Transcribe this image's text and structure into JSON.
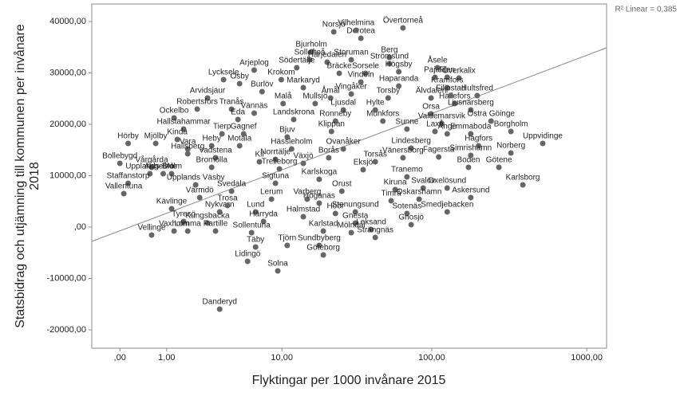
{
  "chart_data": {
    "type": "scatter",
    "x_label": "Flyktingar per 1000 invånare 2015",
    "y_label": [
      "Statsbidrag och utjämning till kommunen per invånare",
      "2018"
    ],
    "r2_label": "R² Linear = 0,385",
    "xscale": "log1p",
    "xlim": [
      -0.34,
      1342
    ],
    "ylim": [
      -23570,
      43410
    ],
    "xticks": [
      {
        "value": 0,
        "label": ",00"
      },
      {
        "value": 1,
        "label": "1,00"
      },
      {
        "value": 10,
        "label": "10,00"
      },
      {
        "value": 100,
        "label": "100,00"
      },
      {
        "value": 1000,
        "label": "1000,00"
      }
    ],
    "yticks": [
      {
        "value": 40000,
        "label": "40000,00"
      },
      {
        "value": 30000,
        "label": "30000,00"
      },
      {
        "value": 20000,
        "label": "20000,00"
      },
      {
        "value": 10000,
        "label": "10000,00"
      },
      {
        "value": 0,
        "label": ",00"
      },
      {
        "value": -10000,
        "label": "-10000,00"
      },
      {
        "value": -20000,
        "label": "-20000,00"
      }
    ],
    "fit_line": {
      "color": "#888888",
      "x": [
        -0.34,
        1342
      ],
      "y": [
        -2790,
        34880
      ]
    },
    "series": [
      {
        "color": "#666666",
        "labels": [
          "Övertorneå",
          "Norsjö",
          "Dorotea",
          "Vilhelmina",
          "Bjurholm",
          "Berg",
          "Sollefteå",
          "Storuman",
          "Åsele",
          "Strömsund",
          "Härjedalen",
          "Överkalix",
          "Arjeplog",
          "Södertälje",
          "Högsby",
          "Bräcke",
          "Sorsele",
          "Pajala",
          "Flen",
          "Lycksele",
          "Osby",
          "Krokom",
          "Vindeln",
          "Haparanda",
          "Kramfors",
          "Burlöv",
          "Markaryd",
          "Arvidsjaur",
          "Vingåker",
          "Torsby",
          "Älvdalen",
          "Hultsfred",
          "Åmål",
          "Malå",
          "Mullsjö",
          "Robertsfors",
          "Tranås",
          "Vännäs",
          "Hällefors",
          "Ljusnarsberg",
          "Ljusdal",
          "Hylte",
          "Filipstad",
          "Orsa",
          "Ockelbo",
          "Eda",
          "Landskrona",
          "Ronneby",
          "Munkfors",
          "Valdemarsvik",
          "Östra Göinge",
          "Hallstahammar",
          "Tierp",
          "Gagnef",
          "Bjuv",
          "Klippan",
          "Sunne",
          "Laxå",
          "Ånge",
          "Emmaboda",
          "Borgholm",
          "Kinda",
          "Hörby",
          "Mjölby",
          "Vara",
          "Heby",
          "Motala",
          "Hässleholm",
          "Ovanåker",
          "Lindesberg",
          "Hagfors",
          "Uppvidinge",
          "Norberg",
          "Fagersta",
          "Hallsberg",
          "Vadstena",
          "Norrtälje",
          "Kil",
          "Växjö",
          "Borås",
          "Torsås",
          "Vänersborg",
          "Bollebygd",
          "Vårgårda",
          "Bromölla",
          "Trelleborg",
          "Eksjö",
          "Boden",
          "Götene",
          "Upplands-Bro",
          "Ängelholm",
          "Ale",
          "Karlskoga",
          "Tranemo",
          "Simrishamn",
          "Staffanstorp",
          "Upplands Väsby",
          "Sigtuna",
          "Svalöv",
          "Oxelösund",
          "Kiruna",
          "Orust",
          "Vallentuna",
          "Värmdö",
          "Svedala",
          "Lerum",
          "Varberg",
          "Timrå",
          "Oskarshamn",
          "Askersund",
          "Karlsborg",
          "Höganäs",
          "Kävlinge",
          "Nykvarn",
          "Lund",
          "Höör",
          "Stenungsund",
          "Sotenäs",
          "Smedjebacken",
          "Tyresö",
          "Kungsbacka",
          "Halmstad",
          "Gnesta",
          "Gnosjö",
          "Vaxholm",
          "Trosa",
          "Härryda",
          "Leksand",
          "Partille",
          "Sollentuna",
          "Karlstad",
          "Mölndal",
          "Strängnäs",
          "Vellinge",
          "Lomma",
          "Täby",
          "Tjörn",
          "Sundbyberg",
          "Lidingö",
          "Göteborg",
          "Solna",
          "Danderyd"
        ],
        "x": [
          65,
          22.7,
          34.4,
          32,
          16,
          53,
          15.6,
          29.7,
          109,
          53,
          20.5,
          150,
          6.3,
          12.7,
          61,
          24.7,
          36.9,
          105,
          126,
          3.64,
          4.88,
          9.9,
          34.4,
          61,
          126,
          7.2,
          14.1,
          2.66,
          29.7,
          52,
          99,
          197,
          21.6,
          10.2,
          17,
          2.14,
          4.22,
          6.3,
          141,
          179,
          26.3,
          42.8,
          133,
          99,
          1.23,
          4.74,
          12.1,
          23.3,
          48,
          116,
          242,
          1.57,
          3.53,
          5.24,
          10.9,
          21.9,
          69,
          105,
          126,
          179,
          325,
          1.34,
          0.13,
          0.7,
          1.73,
          2.89,
          4.88,
          11.7,
          26.3,
          73.5,
          201,
          521,
          325,
          111,
          1.73,
          3.12,
          9,
          6.89,
          14.1,
          21,
          42.8,
          65,
          0,
          0.6,
          2.89,
          9.6,
          35.6,
          173,
          272,
          0.56,
          0.9,
          1.15,
          18.1,
          69,
          179,
          0.13,
          2.07,
          9,
          88,
          126,
          57.8,
          25.7,
          0.06,
          2.26,
          4.22,
          8.43,
          15,
          54.4,
          82.8,
          179,
          388,
          18.1,
          1.15,
          3.38,
          6.45,
          23.3,
          31.6,
          69,
          126,
          1.57,
          2.66,
          14.1,
          31.6,
          73.5,
          1.23,
          3.92,
          7.38,
          40.2,
          3.12,
          6.02,
          19.3,
          29.7,
          42.8,
          0.6,
          1.73,
          6.45,
          10.9,
          18.1,
          5.62,
          19.3,
          9.35,
          3.38
        ],
        "values": [
          38760,
          37980,
          36740,
          38300,
          34110,
          33020,
          32560,
          32560,
          31010,
          31780,
          32090,
          28990,
          30540,
          31010,
          30230,
          29920,
          29920,
          29150,
          29150,
          28680,
          27910,
          28680,
          28220,
          27440,
          27130,
          26360,
          27130,
          25120,
          25890,
          25120,
          25120,
          25580,
          25120,
          24030,
          24030,
          22950,
          22950,
          22170,
          24030,
          22790,
          22790,
          22790,
          25580,
          22020,
          21240,
          20930,
          20930,
          20620,
          20620,
          20160,
          20620,
          19070,
          18140,
          18140,
          17520,
          18600,
          19070,
          18600,
          18140,
          18140,
          18600,
          17050,
          16280,
          16280,
          15190,
          15810,
          15810,
          15190,
          15190,
          15350,
          15810,
          16280,
          14420,
          13640,
          14260,
          13490,
          13180,
          12710,
          12400,
          13490,
          12710,
          13490,
          12400,
          11630,
          11630,
          11320,
          11160,
          11630,
          11630,
          10390,
          10390,
          10390,
          9300,
          9770,
          13950,
          8530,
          8220,
          8530,
          7600,
          7600,
          7290,
          6980,
          6510,
          5740,
          6980,
          5430,
          5430,
          5120,
          5430,
          5740,
          8220,
          4650,
          3570,
          2950,
          2950,
          2640,
          2950,
          2640,
          2950,
          1090,
          780,
          2020,
          780,
          470,
          -780,
          4190,
          1090,
          -470,
          -780,
          -1090,
          -780,
          -1090,
          -2020,
          -1550,
          -780,
          -3880,
          -3570,
          -3570,
          -6670,
          -5430,
          -8530,
          -15970
        ]
      }
    ]
  }
}
